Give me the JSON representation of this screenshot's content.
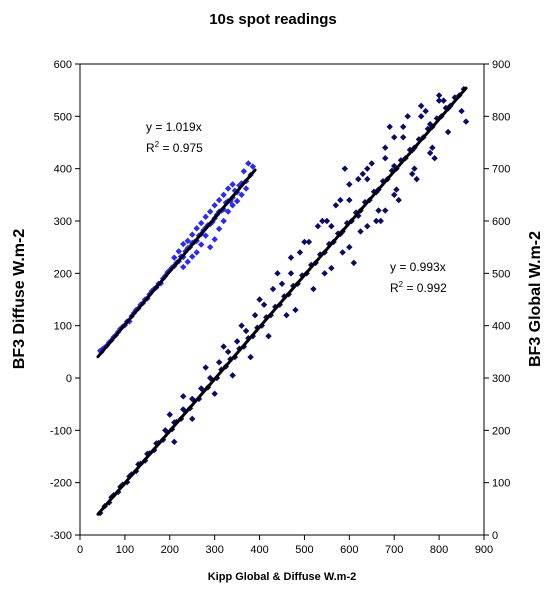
{
  "chart_data": {
    "type": "scatter",
    "title": "10s spot readings",
    "xlabel": "Kipp Global & Diffuse W.m-2",
    "ylabel_left": "BF3 Diffuse W.m-2",
    "ylabel_right": "BF3 Global W.m-2",
    "xlim": [
      0,
      900
    ],
    "ylim_left": [
      -300,
      600
    ],
    "ylim_right": [
      0,
      900
    ],
    "x_ticks": [
      0,
      100,
      200,
      300,
      400,
      500,
      600,
      700,
      800,
      900
    ],
    "y_left_ticks": [
      -300,
      -200,
      -100,
      0,
      100,
      200,
      300,
      400,
      500,
      600
    ],
    "y_right_ticks": [
      0,
      100,
      200,
      300,
      400,
      500,
      600,
      700,
      800,
      900
    ],
    "grid": false,
    "series": [
      {
        "axis": "left",
        "color": "#2828ff",
        "marker": "diamond",
        "slope": 1.019,
        "x_range": [
          40,
          390
        ],
        "annotation_line1": "y = 1.019x",
        "annotation_line2_prefix": "R",
        "annotation_line2_sup": "2",
        "annotation_line2_suffix": " = 0.975",
        "points": [
          [
            45,
            52
          ],
          [
            50,
            55
          ],
          [
            60,
            62
          ],
          [
            70,
            72
          ],
          [
            80,
            82
          ],
          [
            90,
            94
          ],
          [
            100,
            101
          ],
          [
            110,
            108
          ],
          [
            120,
            124
          ],
          [
            130,
            133
          ],
          [
            140,
            143
          ],
          [
            150,
            152
          ],
          [
            160,
            166
          ],
          [
            170,
            173
          ],
          [
            180,
            181
          ],
          [
            190,
            195
          ],
          [
            200,
            206
          ],
          [
            210,
            214
          ],
          [
            220,
            223
          ],
          [
            230,
            231
          ],
          [
            240,
            248
          ],
          [
            250,
            258
          ],
          [
            260,
            262
          ],
          [
            270,
            275
          ],
          [
            280,
            287
          ],
          [
            290,
            294
          ],
          [
            300,
            305
          ],
          [
            310,
            318
          ],
          [
            320,
            322
          ],
          [
            330,
            338
          ],
          [
            340,
            345
          ],
          [
            350,
            355
          ],
          [
            360,
            372
          ],
          [
            370,
            376
          ],
          [
            380,
            388
          ],
          [
            385,
            404
          ],
          [
            375,
            410
          ],
          [
            365,
            395
          ],
          [
            355,
            368
          ],
          [
            345,
            358
          ],
          [
            335,
            338
          ],
          [
            325,
            335
          ],
          [
            315,
            320
          ],
          [
            305,
            312
          ],
          [
            295,
            298
          ],
          [
            285,
            292
          ],
          [
            275,
            282
          ],
          [
            265,
            272
          ],
          [
            255,
            260
          ],
          [
            245,
            250
          ],
          [
            235,
            242
          ],
          [
            225,
            232
          ],
          [
            215,
            220
          ],
          [
            205,
            211
          ],
          [
            195,
            202
          ],
          [
            185,
            190
          ],
          [
            175,
            180
          ],
          [
            165,
            170
          ],
          [
            155,
            160
          ],
          [
            145,
            150
          ],
          [
            135,
            140
          ],
          [
            125,
            130
          ],
          [
            115,
            118
          ],
          [
            105,
            108
          ],
          [
            95,
            98
          ],
          [
            85,
            88
          ],
          [
            75,
            78
          ],
          [
            65,
            68
          ],
          [
            55,
            58
          ],
          [
            48,
            50
          ],
          [
            290,
            250
          ],
          [
            300,
            265
          ],
          [
            310,
            285
          ],
          [
            320,
            300
          ],
          [
            330,
            318
          ],
          [
            340,
            330
          ],
          [
            260,
            240
          ],
          [
            270,
            255
          ],
          [
            280,
            272
          ],
          [
            250,
            232
          ],
          [
            240,
            222
          ],
          [
            230,
            212
          ],
          [
            350,
            338
          ],
          [
            360,
            350
          ],
          [
            370,
            362
          ],
          [
            210,
            230
          ],
          [
            220,
            242
          ],
          [
            230,
            256
          ],
          [
            240,
            262
          ],
          [
            250,
            274
          ],
          [
            260,
            286
          ],
          [
            270,
            296
          ],
          [
            280,
            308
          ],
          [
            290,
            318
          ],
          [
            300,
            330
          ],
          [
            310,
            340
          ],
          [
            320,
            350
          ],
          [
            330,
            362
          ],
          [
            340,
            370
          ]
        ]
      },
      {
        "axis": "right",
        "color": "#0a0a6e",
        "marker": "diamond",
        "slope": 0.993,
        "x_range": [
          40,
          860
        ],
        "annotation_line1": "y = 0.993x",
        "annotation_line2_prefix": "R",
        "annotation_line2_sup": "2",
        "annotation_line2_suffix": " = 0.992",
        "points": [
          [
            45,
            42
          ],
          [
            55,
            55
          ],
          [
            65,
            62
          ],
          [
            75,
            76
          ],
          [
            85,
            82
          ],
          [
            95,
            96
          ],
          [
            105,
            101
          ],
          [
            115,
            116
          ],
          [
            125,
            122
          ],
          [
            135,
            136
          ],
          [
            145,
            142
          ],
          [
            155,
            156
          ],
          [
            165,
            162
          ],
          [
            175,
            176
          ],
          [
            185,
            182
          ],
          [
            195,
            196
          ],
          [
            205,
            202
          ],
          [
            215,
            216
          ],
          [
            225,
            222
          ],
          [
            235,
            236
          ],
          [
            245,
            242
          ],
          [
            255,
            256
          ],
          [
            265,
            260
          ],
          [
            275,
            276
          ],
          [
            285,
            282
          ],
          [
            295,
            296
          ],
          [
            305,
            300
          ],
          [
            315,
            316
          ],
          [
            325,
            322
          ],
          [
            335,
            336
          ],
          [
            345,
            340
          ],
          [
            355,
            356
          ],
          [
            365,
            360
          ],
          [
            375,
            376
          ],
          [
            385,
            380
          ],
          [
            395,
            396
          ],
          [
            405,
            400
          ],
          [
            415,
            416
          ],
          [
            425,
            420
          ],
          [
            435,
            436
          ],
          [
            445,
            440
          ],
          [
            455,
            456
          ],
          [
            465,
            460
          ],
          [
            475,
            476
          ],
          [
            485,
            480
          ],
          [
            495,
            496
          ],
          [
            505,
            500
          ],
          [
            515,
            516
          ],
          [
            525,
            520
          ],
          [
            535,
            536
          ],
          [
            545,
            540
          ],
          [
            555,
            556
          ],
          [
            565,
            560
          ],
          [
            575,
            576
          ],
          [
            585,
            580
          ],
          [
            595,
            596
          ],
          [
            605,
            600
          ],
          [
            615,
            616
          ],
          [
            625,
            620
          ],
          [
            635,
            636
          ],
          [
            645,
            640
          ],
          [
            655,
            656
          ],
          [
            665,
            660
          ],
          [
            675,
            676
          ],
          [
            685,
            680
          ],
          [
            695,
            696
          ],
          [
            705,
            700
          ],
          [
            715,
            716
          ],
          [
            725,
            720
          ],
          [
            735,
            736
          ],
          [
            745,
            740
          ],
          [
            755,
            756
          ],
          [
            765,
            760
          ],
          [
            775,
            776
          ],
          [
            785,
            780
          ],
          [
            795,
            796
          ],
          [
            805,
            800
          ],
          [
            815,
            816
          ],
          [
            825,
            820
          ],
          [
            835,
            836
          ],
          [
            845,
            840
          ],
          [
            855,
            852
          ],
          [
            200,
            230
          ],
          [
            210,
            178
          ],
          [
            230,
            265
          ],
          [
            250,
            222
          ],
          [
            280,
            320
          ],
          [
            300,
            270
          ],
          [
            320,
            360
          ],
          [
            340,
            305
          ],
          [
            360,
            400
          ],
          [
            380,
            340
          ],
          [
            400,
            450
          ],
          [
            420,
            380
          ],
          [
            440,
            500
          ],
          [
            460,
            420
          ],
          [
            470,
            530
          ],
          [
            480,
            430
          ],
          [
            500,
            560
          ],
          [
            520,
            470
          ],
          [
            540,
            600
          ],
          [
            560,
            510
          ],
          [
            580,
            640
          ],
          [
            600,
            550
          ],
          [
            620,
            680
          ],
          [
            640,
            590
          ],
          [
            650,
            710
          ],
          [
            660,
            600
          ],
          [
            680,
            740
          ],
          [
            700,
            650
          ],
          [
            720,
            780
          ],
          [
            740,
            690
          ],
          [
            760,
            820
          ],
          [
            780,
            730
          ],
          [
            800,
            840
          ],
          [
            820,
            770
          ],
          [
            850,
            810
          ],
          [
            860,
            790
          ],
          [
            590,
            700
          ],
          [
            610,
            520
          ],
          [
            630,
            690
          ],
          [
            670,
            600
          ],
          [
            690,
            780
          ],
          [
            710,
            640
          ],
          [
            730,
            800
          ],
          [
            750,
            680
          ],
          [
            770,
            810
          ],
          [
            790,
            720
          ],
          [
            810,
            830
          ],
          [
            700,
            760
          ],
          [
            680,
            620
          ],
          [
            640,
            700
          ],
          [
            600,
            670
          ],
          [
            570,
            630
          ],
          [
            550,
            600
          ],
          [
            530,
            590
          ],
          [
            510,
            560
          ],
          [
            490,
            540
          ],
          [
            470,
            500
          ],
          [
            450,
            480
          ],
          [
            430,
            470
          ],
          [
            410,
            440
          ],
          [
            390,
            420
          ],
          [
            370,
            390
          ],
          [
            350,
            370
          ],
          [
            330,
            350
          ],
          [
            310,
            330
          ],
          [
            290,
            300
          ],
          [
            270,
            280
          ],
          [
            250,
            260
          ],
          [
            230,
            240
          ],
          [
            210,
            215
          ],
          [
            190,
            200
          ],
          [
            170,
            175
          ],
          [
            150,
            155
          ],
          [
            130,
            135
          ],
          [
            110,
            112
          ],
          [
            90,
            92
          ],
          [
            70,
            72
          ],
          [
            580,
            575
          ],
          [
            620,
            610
          ],
          [
            660,
            655
          ],
          [
            700,
            705
          ],
          [
            740,
            735
          ],
          [
            780,
            785
          ],
          [
            820,
            815
          ],
          [
            560,
            590
          ],
          [
            600,
            640
          ],
          [
            640,
            680
          ],
          [
            680,
            720
          ],
          [
            720,
            760
          ],
          [
            760,
            800
          ],
          [
            800,
            830
          ],
          [
            545,
            500
          ],
          [
            585,
            540
          ],
          [
            625,
            580
          ],
          [
            665,
            620
          ],
          [
            705,
            660
          ],
          [
            745,
            700
          ],
          [
            785,
            740
          ]
        ]
      }
    ]
  }
}
